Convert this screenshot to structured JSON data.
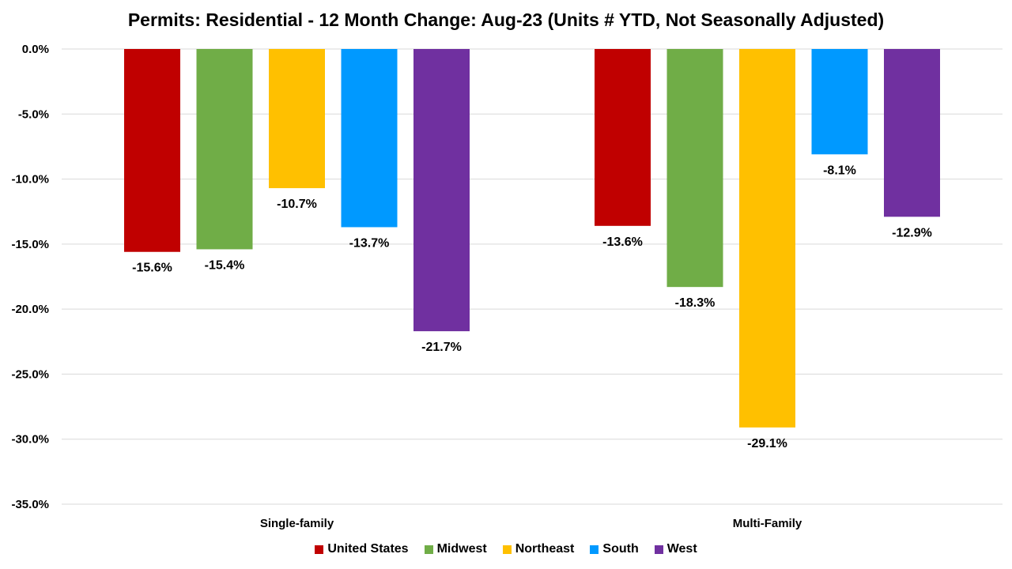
{
  "chart_data": {
    "type": "bar",
    "title": "Permits: Residential - 12 Month Change:  Aug-23 (Units # YTD, Not Seasonally Adjusted)",
    "xlabel": "",
    "ylabel": "",
    "categories": [
      "Single-family",
      "Multi-Family"
    ],
    "series": [
      {
        "name": "United States",
        "color": "#C00000",
        "values": [
          -15.6,
          -13.6
        ],
        "labels": [
          "-15.6%",
          "-13.6%"
        ]
      },
      {
        "name": "Midwest",
        "color": "#70AD47",
        "values": [
          -15.4,
          -18.3
        ],
        "labels": [
          "-15.4%",
          "-18.3%"
        ]
      },
      {
        "name": "Northeast",
        "color": "#FFC000",
        "values": [
          -10.7,
          -29.1
        ],
        "labels": [
          "-10.7%",
          "-29.1%"
        ]
      },
      {
        "name": "South",
        "color": "#0099FF",
        "values": [
          -13.7,
          -8.1
        ],
        "labels": [
          "-13.7%",
          "-8.1%"
        ]
      },
      {
        "name": "West",
        "color": "#7030A0",
        "values": [
          -21.7,
          -12.9
        ],
        "labels": [
          "-21.7%",
          "-12.9%"
        ]
      }
    ],
    "ylim": [
      -35.0,
      0.0
    ],
    "yticks": [
      0.0,
      -5.0,
      -10.0,
      -15.0,
      -20.0,
      -25.0,
      -30.0,
      -35.0
    ],
    "ytick_labels": [
      "0.0%",
      "-5.0%",
      "-10.0%",
      "-15.0%",
      "-20.0%",
      "-25.0%",
      "-30.0%",
      "-35.0%"
    ],
    "grid": true,
    "legend_position": "bottom"
  }
}
